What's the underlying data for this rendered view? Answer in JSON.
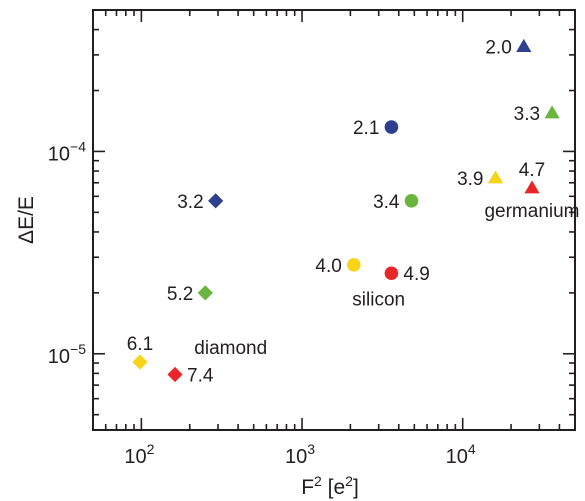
{
  "chart_data": {
    "type": "scatter",
    "xlabel": "F",
    "xlabel_sup": "2",
    "xlabel_unit_open": " [e",
    "xlabel_unit_sup": "2",
    "xlabel_unit_close": "]",
    "ylabel": "ΔE/E",
    "x_scale": "log",
    "y_scale": "log",
    "xlim": [
      50,
      50000
    ],
    "ylim": [
      4.2e-06,
      0.0005
    ],
    "x_ticks": [
      {
        "base": "10",
        "exp": "2",
        "value": 100
      },
      {
        "base": "10",
        "exp": "3",
        "value": 1000
      },
      {
        "base": "10",
        "exp": "4",
        "value": 10000
      }
    ],
    "y_ticks": [
      {
        "base": "10",
        "exp": "−5",
        "value": 1e-05
      },
      {
        "base": "10",
        "exp": "−4",
        "value": 0.0001
      }
    ],
    "grid": false,
    "colors": {
      "blue": "#2e3f8f",
      "green": "#6ab53e",
      "yellow": "#f7d417",
      "red": "#e8262a"
    },
    "points": [
      {
        "material": "germanium",
        "shape": "triangle",
        "color": "blue",
        "x": 24000,
        "y": 0.00033,
        "label": "2.0",
        "label_pos": "left"
      },
      {
        "material": "germanium",
        "shape": "triangle",
        "color": "green",
        "x": 36000,
        "y": 0.000155,
        "label": "3.3",
        "label_pos": "left"
      },
      {
        "material": "germanium",
        "shape": "triangle",
        "color": "yellow",
        "x": 16000,
        "y": 7.4e-05,
        "label": "3.9",
        "label_pos": "left"
      },
      {
        "material": "germanium",
        "shape": "triangle",
        "color": "red",
        "x": 27000,
        "y": 6.6e-05,
        "label": "4.7",
        "label_pos": "above"
      },
      {
        "material": "silicon",
        "shape": "circle",
        "color": "blue",
        "x": 3600,
        "y": 0.000132,
        "label": "2.1",
        "label_pos": "left"
      },
      {
        "material": "silicon",
        "shape": "circle",
        "color": "green",
        "x": 4800,
        "y": 5.7e-05,
        "label": "3.4",
        "label_pos": "left"
      },
      {
        "material": "silicon",
        "shape": "circle",
        "color": "yellow",
        "x": 2100,
        "y": 2.75e-05,
        "label": "4.0",
        "label_pos": "left"
      },
      {
        "material": "silicon",
        "shape": "circle",
        "color": "red",
        "x": 3600,
        "y": 2.5e-05,
        "label": "4.9",
        "label_pos": "right"
      },
      {
        "material": "diamond",
        "shape": "diamond",
        "color": "blue",
        "x": 290,
        "y": 5.7e-05,
        "label": "3.2",
        "label_pos": "left"
      },
      {
        "material": "diamond",
        "shape": "diamond",
        "color": "green",
        "x": 250,
        "y": 2e-05,
        "label": "5.2",
        "label_pos": "left"
      },
      {
        "material": "diamond",
        "shape": "diamond",
        "color": "yellow",
        "x": 98,
        "y": 9.1e-06,
        "label": "6.1",
        "label_pos": "above"
      },
      {
        "material": "diamond",
        "shape": "diamond",
        "color": "red",
        "x": 162,
        "y": 7.9e-06,
        "label": "7.4",
        "label_pos": "right"
      }
    ],
    "annotations": [
      {
        "text": "germanium",
        "x": 27000,
        "y": 4.75e-05
      },
      {
        "text": "silicon",
        "x": 3000,
        "y": 1.73e-05
      },
      {
        "text": "diamond",
        "x": 360,
        "y": 1e-05
      }
    ]
  }
}
